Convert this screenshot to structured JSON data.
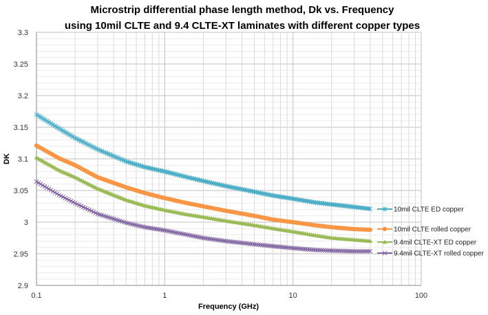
{
  "chart_data": {
    "type": "line",
    "title": "Microstrip differential phase length method, Dk vs. Frequency",
    "subtitle": "using 10mil CLTE and 9.4 CLTE-XT laminates with different copper types",
    "xlabel": "Frequency (GHz)",
    "ylabel": "DK",
    "x_scale": "log",
    "xlim": [
      0.1,
      100
    ],
    "ylim": [
      2.9,
      3.3
    ],
    "x_ticks": [
      "0.1",
      "1",
      "10",
      "100"
    ],
    "y_ticks": [
      "2.9",
      "2.95",
      "3",
      "3.05",
      "3.1",
      "3.15",
      "3.2",
      "3.25",
      "3.3"
    ],
    "grid": true,
    "legend": "right",
    "x": [
      0.1,
      0.15,
      0.2,
      0.3,
      0.5,
      0.7,
      1,
      1.5,
      2,
      3,
      5,
      7,
      10,
      15,
      20,
      30,
      40
    ],
    "series": [
      {
        "name": "10mil CLTE ED copper",
        "color": "#4bacc6",
        "marker": "star",
        "values": [
          3.17,
          3.148,
          3.133,
          3.115,
          3.096,
          3.087,
          3.08,
          3.071,
          3.065,
          3.057,
          3.048,
          3.042,
          3.037,
          3.031,
          3.028,
          3.024,
          3.021
        ]
      },
      {
        "name": "10mil CLTE rolled copper",
        "color": "#f79646",
        "marker": "circle",
        "values": [
          3.121,
          3.101,
          3.09,
          3.071,
          3.055,
          3.046,
          3.038,
          3.03,
          3.025,
          3.018,
          3.01,
          3.004,
          3.0,
          2.995,
          2.992,
          2.989,
          2.988
        ]
      },
      {
        "name": "9.4mil CLTE-XT ED copper",
        "color": "#9bbb59",
        "marker": "triangle",
        "values": [
          3.102,
          3.082,
          3.071,
          3.053,
          3.035,
          3.026,
          3.019,
          3.012,
          3.008,
          3.002,
          2.995,
          2.99,
          2.985,
          2.979,
          2.975,
          2.972,
          2.97
        ]
      },
      {
        "name": "9.4mil CLTE-XT rolled copper",
        "color": "#8064a2",
        "marker": "x",
        "values": [
          3.064,
          3.043,
          3.03,
          3.013,
          2.999,
          2.992,
          2.987,
          2.98,
          2.975,
          2.97,
          2.965,
          2.962,
          2.959,
          2.956,
          2.955,
          2.954,
          2.954
        ]
      }
    ]
  }
}
